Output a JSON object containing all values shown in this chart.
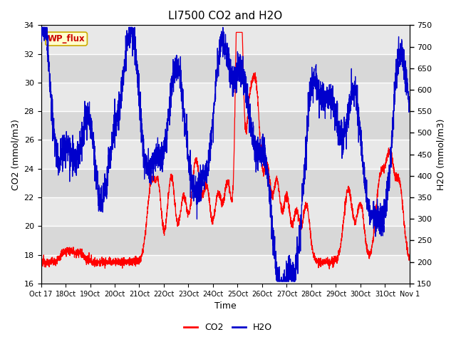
{
  "title": "LI7500 CO2 and H2O",
  "xlabel": "Time",
  "ylabel_left": "CO2 (mmol/m3)",
  "ylabel_right": "H2O (mmol/m3)",
  "xlim_days": [
    0,
    15
  ],
  "ylim_left": [
    16,
    34
  ],
  "ylim_right": [
    150,
    750
  ],
  "yticks_left": [
    16,
    18,
    20,
    22,
    24,
    26,
    28,
    30,
    32,
    34
  ],
  "yticks_right": [
    150,
    200,
    250,
    300,
    350,
    400,
    450,
    500,
    550,
    600,
    650,
    700,
    750
  ],
  "xtick_labels": [
    "Oct 17",
    "Oct 18",
    "Oct 19",
    "Oct 20",
    "Oct 21",
    "Oct 22",
    "Oct 23",
    "Oct 24",
    "Oct 25",
    "Oct 26",
    "Oct 27",
    "Oct 28",
    "Oct 29",
    "Oct 30",
    "Oct 31",
    "Nov 1"
  ],
  "color_co2": "#ff0000",
  "color_h2o": "#0000cc",
  "color_plot_bg": "#e8e8e8",
  "color_strip_light": "#ececec",
  "color_strip_dark": "#d8d8d8",
  "annotation_text": "WP_flux",
  "annotation_color": "#cc0000",
  "annotation_bg": "#ffffcc",
  "annotation_border": "#ccaa00",
  "legend_fontsize": 9,
  "title_fontsize": 11,
  "axis_fontsize": 9,
  "tick_fontsize": 8,
  "linewidth": 0.9
}
